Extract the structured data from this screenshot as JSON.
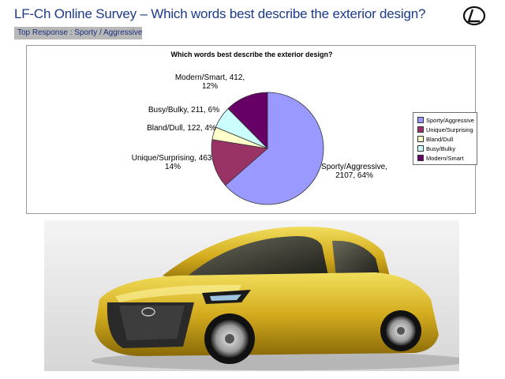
{
  "slide": {
    "title": "LF-Ch Online Survey – Which words best describe the exterior design?",
    "subtitle": "Top Response : Sporty / Aggressive"
  },
  "brand": {
    "logo_icon": "lexus-logo-icon"
  },
  "photo": {
    "subject": "car-photo"
  },
  "colors": {
    "title": "#1d3a8a",
    "subtitle_bg": "#b8b8b8",
    "car_body": "#d9b722"
  },
  "chart_data": {
    "type": "pie",
    "title": "Which words best describe the exterior design?",
    "legend_position": "right",
    "slices": [
      {
        "name": "Sporty/Aggressive",
        "value": 2107,
        "percent": 64,
        "label": "Sporty/Aggressive, 2107, 64%",
        "color": "#9999ff"
      },
      {
        "name": "Unique/Surprising",
        "value": 463,
        "percent": 14,
        "label": "Unique/Surprising, 463, 14%",
        "color": "#993366"
      },
      {
        "name": "Bland/Dull",
        "value": 122,
        "percent": 4,
        "label": "Bland/Dull, 122, 4%",
        "color": "#ffffcc"
      },
      {
        "name": "Busy/Bulky",
        "value": 211,
        "percent": 6,
        "label": "Busy/Bulky, 211, 6%",
        "color": "#ccffff"
      },
      {
        "name": "Modern/Smart",
        "value": 412,
        "percent": 12,
        "label": "Modern/Smart, 412, 12%",
        "color": "#660066"
      }
    ]
  }
}
